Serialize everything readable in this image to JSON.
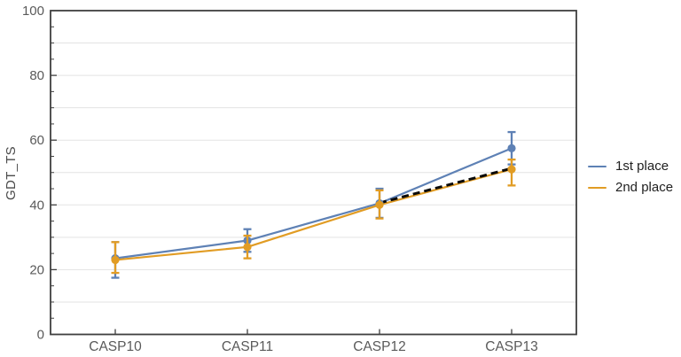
{
  "chart_data": {
    "type": "line",
    "title": "",
    "xlabel": "",
    "ylabel": "GDT_TS",
    "categories": [
      "CASP10",
      "CASP11",
      "CASP12",
      "CASP13"
    ],
    "ylim": [
      0,
      100
    ],
    "y_major_ticks": [
      0,
      20,
      40,
      60,
      80,
      100
    ],
    "y_grid_interval": 10,
    "y_minor_tick_interval": 5,
    "grid": true,
    "legend_position": "right-outside",
    "series": [
      {
        "name": "1st place",
        "color": "#5E81B5",
        "values": [
          23.5,
          29,
          40.5,
          57.5
        ],
        "err_low": [
          17.5,
          25.5,
          36,
          52.5
        ],
        "err_high": [
          28.5,
          32.5,
          45,
          62.5
        ]
      },
      {
        "name": "2nd place",
        "color": "#E19C24",
        "values": [
          23,
          27,
          40,
          51
        ],
        "err_low": [
          19,
          23.5,
          35.8,
          46
        ],
        "err_high": [
          28.5,
          30.5,
          44.5,
          54
        ]
      }
    ],
    "annotation_line": {
      "style": "dashed",
      "color": "#0a0a0a",
      "from_category_index": 2,
      "to_category_index": 3,
      "from_value": 40.6,
      "to_value": 51.3
    }
  },
  "axes": {
    "y_label": "GDT_TS",
    "y_tick_labels": [
      "0",
      "20",
      "40",
      "60",
      "80",
      "100"
    ],
    "x_tick_labels": [
      "CASP10",
      "CASP11",
      "CASP12",
      "CASP13"
    ]
  },
  "legend": {
    "items": [
      {
        "label": "1st place",
        "color": "#5E81B5"
      },
      {
        "label": "2nd place",
        "color": "#E19C24"
      }
    ]
  },
  "colors": {
    "frame": "#3f3f3f",
    "grid": "#e3e3e3",
    "tick": "#3f3f3f",
    "tick_label": "#5a5a5a",
    "legend_text": "#1f1f1f",
    "background": "#ffffff"
  }
}
